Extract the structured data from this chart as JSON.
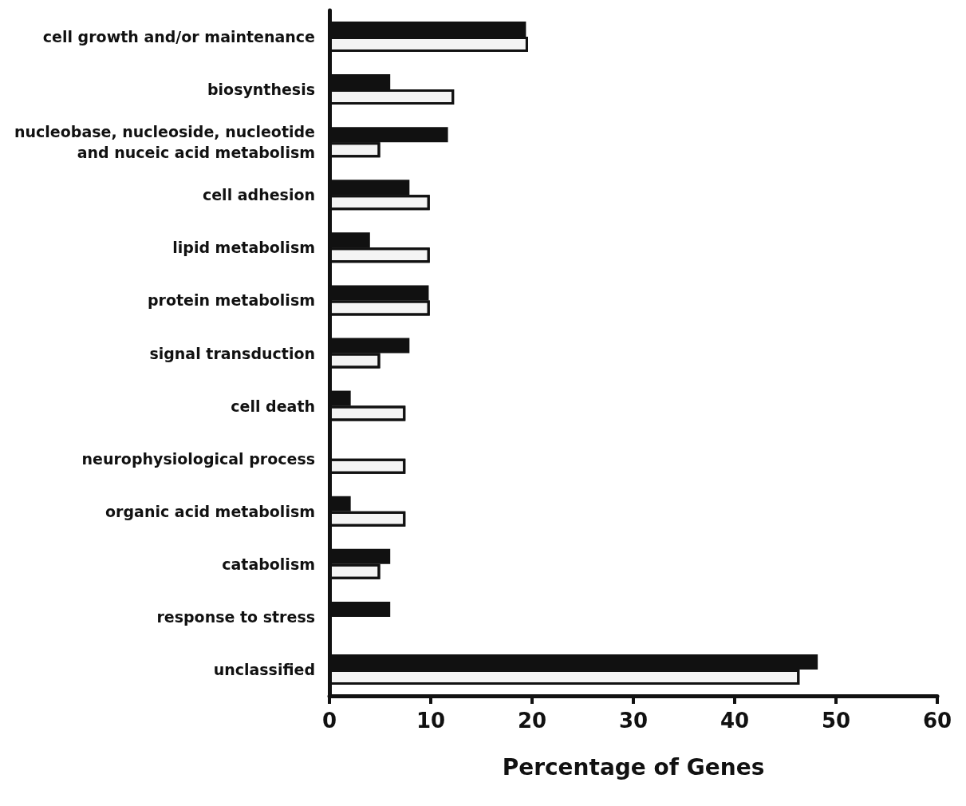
{
  "chart_data": {
    "type": "bar",
    "orientation": "horizontal",
    "xlabel": "Percentage of Genes",
    "categories": [
      "cell growth and/or maintenance",
      "biosynthesis",
      "nucleobase, nucleoside, nucleotide\nand nuceic acid metabolism",
      "cell adhesion",
      "lipid metabolism",
      "protein metabolism",
      "signal transduction",
      "cell death",
      "neurophysiological process",
      "organic acid metabolism",
      "catabolism",
      "response to stress",
      "unclassified"
    ],
    "series": [
      {
        "color": "#111111",
        "values": [
          19.4,
          6.0,
          11.7,
          7.9,
          4.0,
          9.8,
          7.9,
          2.1,
          0,
          2.1,
          6.0,
          6.0,
          48.2
        ]
      },
      {
        "color": "#f4f4f4",
        "values": [
          19.6,
          12.3,
          5.0,
          9.9,
          9.9,
          9.9,
          5.0,
          7.5,
          7.5,
          7.5,
          5.0,
          0,
          46.4
        ]
      }
    ],
    "xlim": [
      0,
      60
    ],
    "xticks": [
      0,
      10,
      20,
      30,
      40,
      50,
      60
    ],
    "grid": false
  }
}
